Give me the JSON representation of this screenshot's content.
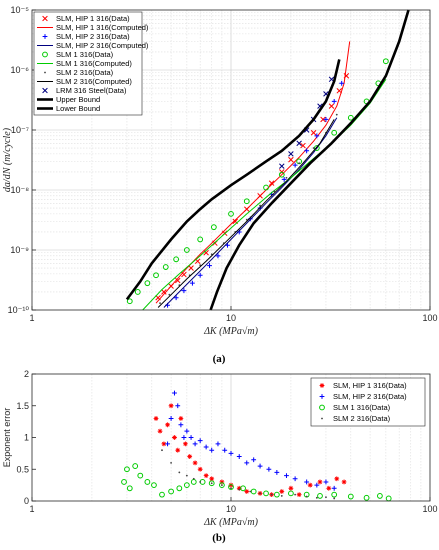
{
  "chart_data": [
    {
      "type": "scatter",
      "panel_label": "(a)",
      "xlabel": "ΔK (MPa√m)",
      "ylabel": "da/dN (m/cycle)",
      "xscale": "log",
      "yscale": "log",
      "xlim": [
        1,
        100
      ],
      "ylim": [
        1e-10,
        1e-05
      ],
      "x_ticks": [
        "1",
        "10",
        "100"
      ],
      "y_ticks": [
        "10⁻¹⁰",
        "10⁻⁹",
        "10⁻⁸",
        "10⁻⁷",
        "10⁻⁶",
        "10⁻⁵"
      ],
      "grid": true,
      "legend_position": "top-left",
      "colors": {
        "red": "#ff0000",
        "blue": "#0000ff",
        "green": "#00cc00",
        "black": "#000000",
        "gray": "#444444",
        "navy": "#000080"
      },
      "series": [
        {
          "name": "SLM, HIP 1 316(Data)",
          "kind": "scatter",
          "marker": "x",
          "color": "#ff0000",
          "x": [
            4.3,
            4.6,
            5.0,
            5.4,
            5.8,
            6.3,
            6.8,
            7.5,
            8.3,
            9.3,
            10.5,
            12,
            14,
            16,
            18,
            20,
            23,
            26,
            29,
            32,
            35,
            38
          ],
          "y": [
            1.6e-10,
            2e-10,
            2.5e-10,
            3.1e-10,
            3.9e-10,
            5e-10,
            6.5e-10,
            9e-10,
            1.3e-09,
            1.9e-09,
            3e-09,
            4.8e-09,
            8e-09,
            1.3e-08,
            2e-08,
            3.2e-08,
            5.5e-08,
            9e-08,
            1.5e-07,
            2.5e-07,
            4.5e-07,
            8e-07
          ]
        },
        {
          "name": "SLM, HIP 1 316(Computed)",
          "kind": "line",
          "color": "#ff0000",
          "x": [
            4.2,
            5,
            6,
            7,
            8,
            10,
            12,
            15,
            18,
            22,
            26,
            30,
            34,
            37,
            39.5
          ],
          "y": [
            1.3e-10,
            2.5e-10,
            5e-10,
            8.5e-10,
            1.3e-09,
            2.7e-09,
            4.8e-09,
            1e-08,
            1.8e-08,
            3.5e-08,
            6.5e-08,
            1.2e-07,
            2.5e-07,
            6e-07,
            3e-06
          ]
        },
        {
          "name": "SLM, HIP 2 316(Data)",
          "kind": "scatter",
          "marker": "+",
          "color": "#0000ff",
          "x": [
            4.8,
            5.3,
            5.8,
            6.4,
            7.0,
            7.8,
            8.6,
            9.6,
            11,
            12.5,
            14,
            16,
            18.5,
            21,
            24,
            27,
            30,
            33,
            36
          ],
          "y": [
            1.2e-10,
            1.6e-10,
            2.1e-10,
            2.8e-10,
            3.8e-10,
            5.5e-10,
            8e-10,
            1.2e-09,
            2e-09,
            3.3e-09,
            5e-09,
            8.5e-09,
            1.5e-08,
            2.6e-08,
            4.5e-08,
            8e-08,
            1.5e-07,
            3e-07,
            6e-07
          ]
        },
        {
          "name": "SLM, HIP 2 316(Computed)",
          "kind": "line",
          "color": "#000080",
          "x": [
            4.6,
            5.5,
            6.5,
            8,
            10,
            12,
            15,
            18,
            22,
            26,
            30,
            34
          ],
          "y": [
            1.1e-10,
            2e-10,
            3.5e-10,
            7e-10,
            1.5e-09,
            2.8e-09,
            6e-09,
            1.1e-08,
            2.2e-08,
            4.2e-08,
            8e-08,
            1.6e-07
          ]
        },
        {
          "name": "SLM 1 316(Data)",
          "kind": "scatter",
          "marker": "o",
          "color": "#00cc00",
          "x": [
            3.1,
            3.4,
            3.8,
            4.2,
            4.7,
            5.3,
            6.0,
            7.0,
            8.2,
            10,
            12,
            15,
            18,
            22,
            27,
            33,
            40,
            48,
            55,
            60
          ],
          "y": [
            1.4e-10,
            2e-10,
            2.8e-10,
            3.8e-10,
            5.2e-10,
            7e-10,
            1e-09,
            1.5e-09,
            2.4e-09,
            4e-09,
            6.5e-09,
            1.1e-08,
            1.8e-08,
            3e-08,
            5e-08,
            9e-08,
            1.6e-07,
            3e-07,
            6e-07,
            1.4e-06
          ]
        },
        {
          "name": "SLM 1 316(Computed)",
          "kind": "line",
          "color": "#00cc00",
          "x": [
            3.6,
            4.5,
            5.5,
            7,
            9,
            12,
            16,
            20,
            25,
            32,
            40,
            50,
            60
          ],
          "y": [
            1e-10,
            2.2e-10,
            4e-10,
            8e-10,
            1.7e-09,
            4e-09,
            9e-09,
            1.6e-08,
            3e-08,
            6e-08,
            1.2e-07,
            2.8e-07,
            7e-07
          ]
        },
        {
          "name": "SLM 2 316(Data)",
          "kind": "scatter",
          "marker": ".",
          "color": "#444444",
          "x": [
            4.4,
            4.9,
            5.5,
            6.2,
            7.0,
            8.0,
            9.2,
            10.5,
            12,
            14,
            16.5,
            19,
            22,
            26,
            30,
            34
          ],
          "y": [
            1.3e-10,
            1.8e-10,
            2.6e-10,
            3.8e-10,
            5.6e-10,
            8.5e-10,
            1.3e-09,
            2e-09,
            3.2e-09,
            5.5e-09,
            9.5e-09,
            1.6e-08,
            2.8e-08,
            5e-08,
            9e-08,
            1.8e-07
          ]
        },
        {
          "name": "SLM 2 316(Computed)",
          "kind": "line",
          "color": "#000000",
          "x": [
            4.3,
            5,
            6,
            7.5,
            9.5,
            12,
            15,
            19,
            23,
            28,
            33
          ],
          "y": [
            1.1e-10,
            1.8e-10,
            3.3e-10,
            6.5e-10,
            1.4e-09,
            3e-09,
            6.5e-09,
            1.4e-08,
            2.8e-08,
            6e-08,
            1.5e-07
          ]
        },
        {
          "name": "LRM 316 Steel(Data)",
          "kind": "scatter",
          "marker": "x",
          "color": "#000080",
          "x": [
            18,
            20,
            22,
            24,
            26,
            28,
            30,
            32
          ],
          "y": [
            2.5e-08,
            4e-08,
            6e-08,
            1e-07,
            1.5e-07,
            2.5e-07,
            4e-07,
            7e-07
          ]
        },
        {
          "name": "Upper Bound",
          "kind": "line",
          "width": 2.6,
          "color": "#000000",
          "x": [
            3,
            3.5,
            4,
            5,
            6,
            7,
            8,
            10,
            12,
            15,
            18,
            22,
            26,
            30,
            33,
            35
          ],
          "y": [
            1.5e-10,
            3e-10,
            6e-10,
            1.5e-09,
            3e-09,
            4.8e-09,
            7e-09,
            1.2e-08,
            1.8e-08,
            3e-08,
            4.5e-08,
            8e-08,
            1.5e-07,
            3e-07,
            6.5e-07,
            1.5e-06
          ]
        },
        {
          "name": "Lower Bound",
          "kind": "line",
          "width": 2.6,
          "color": "#000000",
          "x": [
            7.9,
            8.5,
            9.5,
            11,
            13,
            16,
            20,
            25,
            32,
            40,
            50,
            60,
            70,
            78
          ],
          "y": [
            1e-10,
            2e-10,
            5e-10,
            1.2e-09,
            2.8e-09,
            6e-09,
            1.3e-08,
            2.8e-08,
            6e-08,
            1.3e-07,
            3e-07,
            8e-07,
            3e-06,
            1e-05
          ]
        }
      ]
    },
    {
      "type": "scatter",
      "panel_label": "(b)",
      "xlabel": "ΔK (MPa√m)",
      "ylabel": "Exponent error",
      "xscale": "log",
      "xlim": [
        1,
        100
      ],
      "ylim": [
        0,
        2
      ],
      "x_ticks": [
        "1",
        "10",
        "100"
      ],
      "y_ticks": [
        "0",
        "0.5",
        "1",
        "1.5",
        "2"
      ],
      "grid": true,
      "legend_position": "top-right",
      "series": [
        {
          "name": "SLM, HIP 1 316(Data)",
          "marker": "*",
          "color": "#ff0000",
          "x": [
            4.2,
            4.4,
            4.6,
            4.8,
            5.0,
            5.2,
            5.4,
            5.6,
            5.9,
            6.2,
            6.6,
            7.0,
            7.5,
            8.0,
            9.0,
            10,
            11,
            12,
            14,
            16,
            18,
            20,
            22,
            25,
            28,
            31,
            34,
            37
          ],
          "y": [
            1.3,
            1.1,
            0.9,
            1.2,
            1.5,
            1.0,
            0.8,
            1.3,
            0.9,
            0.7,
            0.6,
            0.5,
            0.4,
            0.35,
            0.3,
            0.25,
            0.2,
            0.15,
            0.12,
            0.1,
            0.15,
            0.2,
            0.1,
            0.25,
            0.3,
            0.2,
            0.35,
            0.3
          ]
        },
        {
          "name": "SLM, HIP 2 316(Data)",
          "marker": "+",
          "color": "#0000ff",
          "x": [
            4.8,
            5.0,
            5.2,
            5.4,
            5.6,
            5.8,
            6.0,
            6.3,
            6.6,
            7.0,
            7.5,
            8.0,
            8.6,
            9.3,
            10,
            11,
            12,
            13,
            14,
            15.5,
            17,
            19,
            21,
            24,
            27,
            30,
            33
          ],
          "y": [
            0.9,
            1.3,
            1.7,
            1.5,
            1.2,
            1.0,
            1.1,
            1.0,
            0.9,
            0.95,
            0.85,
            0.8,
            0.9,
            0.8,
            0.75,
            0.7,
            0.6,
            0.65,
            0.55,
            0.5,
            0.45,
            0.4,
            0.35,
            0.3,
            0.25,
            0.3,
            0.2
          ]
        },
        {
          "name": "SLM 1 316(Data)",
          "marker": "o",
          "color": "#00cc00",
          "x": [
            2.9,
            3.0,
            3.1,
            3.3,
            3.5,
            3.8,
            4.1,
            4.5,
            5.0,
            5.5,
            6.0,
            6.5,
            7.2,
            8.0,
            9.0,
            10,
            11.5,
            13,
            15,
            17,
            20,
            24,
            28,
            33,
            40,
            48,
            56,
            62
          ],
          "y": [
            0.3,
            0.5,
            0.2,
            0.55,
            0.4,
            0.3,
            0.25,
            0.1,
            0.15,
            0.2,
            0.25,
            0.3,
            0.3,
            0.28,
            0.25,
            0.22,
            0.2,
            0.15,
            0.12,
            0.1,
            0.12,
            0.1,
            0.08,
            0.1,
            0.07,
            0.05,
            0.08,
            0.04
          ]
        },
        {
          "name": "SLM 2 316(Data)",
          "marker": ".",
          "color": "#444444",
          "x": [
            4.5,
            5.0,
            5.5,
            6.0,
            6.5,
            7.0,
            8.0,
            9.0,
            10,
            11,
            12.5,
            14,
            16,
            18,
            21,
            24,
            27,
            30,
            33
          ],
          "y": [
            0.8,
            0.6,
            0.45,
            0.4,
            0.35,
            0.3,
            0.28,
            0.25,
            0.2,
            0.18,
            0.15,
            0.12,
            0.1,
            0.08,
            0.1,
            0.07,
            0.05,
            0.06,
            0.04
          ]
        }
      ]
    }
  ],
  "captions": {
    "a": "(a)",
    "b": "(b)"
  }
}
